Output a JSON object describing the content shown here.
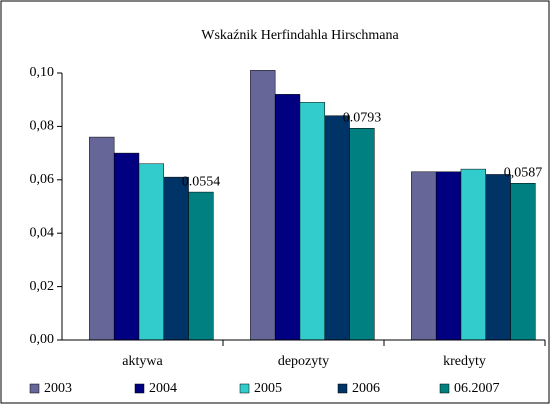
{
  "chart_data": {
    "type": "bar",
    "title": "Wskaźnik Herfindahla Hirschmana",
    "categories": [
      "aktywa",
      "depozyty",
      "kredyty"
    ],
    "series": [
      {
        "name": "2003",
        "color": "#666699",
        "values": [
          0.076,
          0.101,
          0.063
        ]
      },
      {
        "name": "2004",
        "color": "#000080",
        "values": [
          0.07,
          0.092,
          0.063
        ]
      },
      {
        "name": "2005",
        "color": "#33cccc",
        "values": [
          0.066,
          0.089,
          0.064
        ]
      },
      {
        "name": "2006",
        "color": "#003366",
        "values": [
          0.061,
          0.084,
          0.062
        ]
      },
      {
        "name": "06.2007",
        "color": "#008080",
        "values": [
          0.0554,
          0.0793,
          0.0587
        ],
        "value_labels": [
          "0.0554",
          "0.0793",
          "0,0587"
        ]
      }
    ],
    "ylim": [
      0,
      0.1
    ],
    "yticks": [
      {
        "value": 0,
        "label": "0,00"
      },
      {
        "value": 0.02,
        "label": "0,02"
      },
      {
        "value": 0.04,
        "label": "0,04"
      },
      {
        "value": 0.06,
        "label": "0,06"
      },
      {
        "value": 0.08,
        "label": "0,08"
      },
      {
        "value": 0.1,
        "label": "0,10"
      }
    ],
    "grid": false,
    "legend": "bottom"
  }
}
